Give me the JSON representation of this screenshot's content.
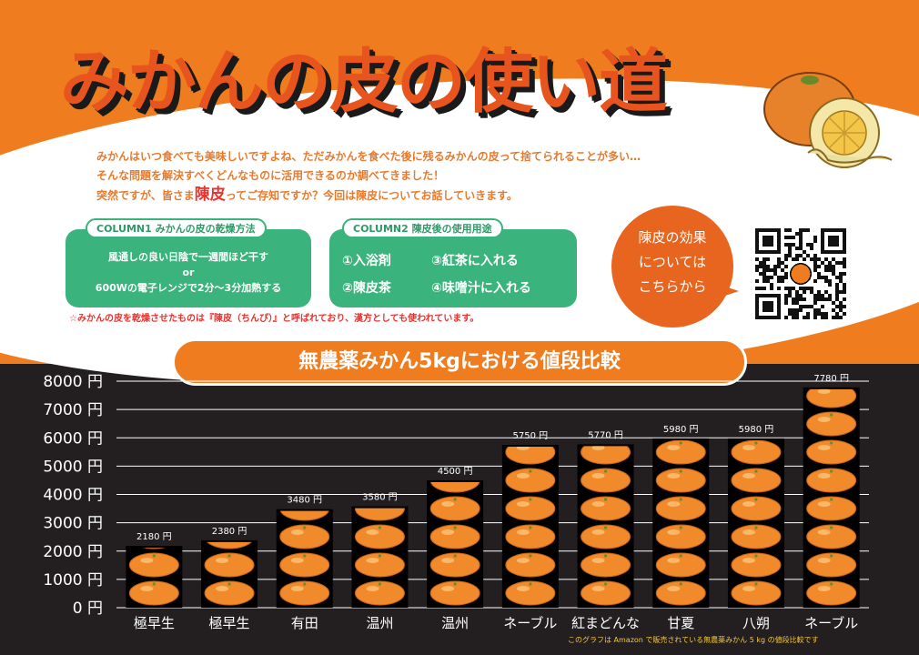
{
  "header": {
    "title": "みかんの皮の使い道",
    "intro_line1": "みかんはいつ食べても美味しいですよね、ただみかんを食べた後に残るみかんの皮って捨てられることが多い…",
    "intro_line2": "そんな問題を解決すべくどんなものに活用できるのか調べてきました！",
    "intro_line3_pre": "突然ですが、皆さま",
    "intro_line3_highlight": "陳皮",
    "intro_line3_post": "ってご存知ですか？今回は陳皮についてお話していきます。"
  },
  "column1": {
    "title": "COLUMN1 みかんの皮の乾燥方法",
    "line1": "風通しの良い日陰で一週間ほど干す",
    "line2": "or",
    "line3": "600Wの電子レンジで2分〜3分加熱する"
  },
  "column2": {
    "title": "COLUMN2 陳皮後の使用用途",
    "items": [
      "①入浴剤",
      "③紅茶に入れる",
      "②陳皮茶",
      "④味噌汁に入れる"
    ]
  },
  "note": "☆みかんの皮を乾燥させたものは『陳皮（ちんぴ）』と呼ばれており、漢方としても使われています。",
  "bubble": {
    "line1": "陳皮の効果",
    "line2": "については",
    "line3": "こちらから"
  },
  "chart_data": {
    "type": "bar",
    "title": "無農薬みかん5kgにおける値段比較",
    "categories": [
      "極早生",
      "極早生",
      "有田",
      "温州",
      "温州",
      "ネーブル",
      "紅まどんな",
      "甘夏",
      "八朔",
      "ネーブル"
    ],
    "values": [
      2180,
      2380,
      3480,
      3580,
      4500,
      5750,
      5770,
      5980,
      5980,
      7780
    ],
    "value_labels": [
      "2180 円",
      "2380 円",
      "3480 円",
      "3580 円",
      "4500 円",
      "5750 円",
      "5770 円",
      "5980 円",
      "5980 円",
      "7780 円"
    ],
    "ylim": [
      0,
      8000
    ],
    "yticks": [
      0,
      1000,
      2000,
      3000,
      4000,
      5000,
      6000,
      7000,
      8000
    ],
    "ytick_labels": [
      "0 円",
      "1000 円",
      "2000 円",
      "3000 円",
      "4000 円",
      "5000 円",
      "6000 円",
      "7000 円",
      "8000 円"
    ],
    "grid": true,
    "footnote": "このグラフは Amazon で販売されている無農薬みかん 5 kg の値段比較です"
  },
  "colors": {
    "orange": "#ef7d1f",
    "green": "#3bb37c",
    "red": "#e8322d",
    "dark": "#231f20",
    "fruit": "#f08a2a"
  }
}
